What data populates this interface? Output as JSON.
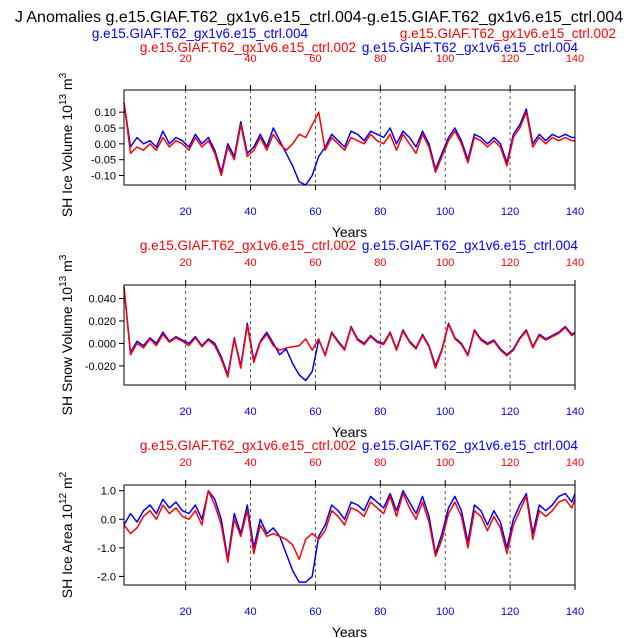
{
  "title": "J Anomalies g.e15.GIAF.T62_gx1v6.e15_ctrl.004-g.e15.GIAF.T62_gx1v6.e15_ctrl.004",
  "colors": {
    "blue": "#0000ff",
    "red": "#ff0000",
    "axis": "#000000",
    "grid": "#555555"
  },
  "chart_data": [
    {
      "type": "line",
      "ylabel": "SH Ice Volume 10",
      "ylabel_sup": "13",
      "ylabel_unit": "m",
      "ylabel_unit_sup": "3",
      "xlabel": "Years",
      "top_label_blue": "g.e15.GIAF.T62_gx1v6.e15_ctrl.004",
      "top_label_red": "g.e15.GIAF.T62_gx1v6.e15_ctrl.002",
      "xlim": [
        1,
        140
      ],
      "ylim": [
        -0.13,
        0.17
      ],
      "yticks": [
        -0.1,
        -0.05,
        0.0,
        0.05,
        0.1
      ],
      "ytick_labels": [
        "-0.10",
        "-0.05",
        "0.00",
        "0.05",
        "0.10"
      ],
      "xticks": [
        20,
        40,
        60,
        80,
        100,
        120,
        140
      ],
      "xtick_labels": [
        "20",
        "40",
        "60",
        "80",
        "100",
        "120",
        "140"
      ],
      "grid_x": [
        20,
        40,
        60,
        80,
        100,
        120
      ],
      "series": [
        {
          "name": "g.e15.GIAF.T62_gx1v6.e15_ctrl.004",
          "color": "#0000ff",
          "x": [
            1,
            3,
            5,
            7,
            9,
            11,
            13,
            15,
            17,
            19,
            21,
            23,
            25,
            27,
            29,
            31,
            33,
            35,
            37,
            39,
            41,
            43,
            45,
            47,
            49,
            51,
            53,
            55,
            57,
            59,
            61,
            63,
            65,
            67,
            69,
            71,
            73,
            75,
            77,
            79,
            81,
            83,
            85,
            87,
            89,
            91,
            93,
            95,
            97,
            99,
            101,
            103,
            105,
            107,
            109,
            111,
            113,
            115,
            117,
            119,
            121,
            123,
            125,
            127,
            129,
            131,
            133,
            135,
            137,
            139,
            140
          ],
          "values": [
            0.13,
            -0.01,
            0.02,
            0.0,
            0.01,
            -0.01,
            0.04,
            0.0,
            0.02,
            0.01,
            -0.01,
            0.03,
            0.0,
            0.02,
            -0.02,
            -0.09,
            0.0,
            -0.04,
            0.07,
            -0.03,
            -0.01,
            0.03,
            -0.01,
            0.05,
            0.01,
            -0.03,
            -0.07,
            -0.12,
            -0.13,
            -0.1,
            -0.04,
            -0.01,
            0.03,
            0.01,
            -0.01,
            0.04,
            0.03,
            0.01,
            0.04,
            0.03,
            0.02,
            0.05,
            0.0,
            0.04,
            0.02,
            -0.01,
            0.04,
            0.0,
            -0.08,
            -0.03,
            0.02,
            0.05,
            0.01,
            -0.05,
            0.03,
            0.02,
            0.0,
            0.02,
            0.0,
            -0.06,
            0.03,
            0.06,
            0.11,
            0.0,
            0.03,
            0.01,
            0.03,
            0.02,
            0.03,
            0.02,
            0.02
          ]
        },
        {
          "name": "g.e15.GIAF.T62_gx1v6.e15_ctrl.002",
          "color": "#ff0000",
          "x": [
            1,
            3,
            5,
            7,
            9,
            11,
            13,
            15,
            17,
            19,
            21,
            23,
            25,
            27,
            29,
            31,
            33,
            35,
            37,
            39,
            41,
            43,
            45,
            47,
            49,
            51,
            53,
            55,
            57,
            59,
            61,
            63,
            65,
            67,
            69,
            71,
            73,
            75,
            77,
            79,
            81,
            83,
            85,
            87,
            89,
            91,
            93,
            95,
            97,
            99,
            101,
            103,
            105,
            107,
            109,
            111,
            113,
            115,
            117,
            119,
            121,
            123,
            125,
            127,
            129,
            131,
            133,
            135,
            137,
            139,
            140
          ],
          "values": [
            0.13,
            -0.03,
            -0.01,
            -0.02,
            0.0,
            -0.02,
            0.02,
            -0.01,
            0.01,
            0.0,
            -0.02,
            0.02,
            -0.01,
            0.01,
            -0.03,
            -0.1,
            -0.01,
            -0.05,
            0.06,
            -0.04,
            -0.02,
            0.02,
            -0.02,
            0.03,
            0.0,
            -0.02,
            0.0,
            0.03,
            0.02,
            0.06,
            0.1,
            -0.02,
            0.02,
            0.0,
            -0.02,
            0.02,
            0.01,
            0.0,
            0.03,
            0.01,
            0.0,
            0.03,
            -0.02,
            0.03,
            0.0,
            -0.03,
            0.03,
            -0.01,
            -0.09,
            -0.04,
            0.01,
            0.04,
            0.0,
            -0.06,
            0.02,
            0.01,
            -0.01,
            0.01,
            -0.01,
            -0.07,
            0.02,
            0.05,
            0.1,
            -0.01,
            0.02,
            0.0,
            0.02,
            0.01,
            0.02,
            0.01,
            0.01
          ]
        }
      ]
    },
    {
      "type": "line",
      "ylabel": "SH Snow Volume 10",
      "ylabel_sup": "13",
      "ylabel_unit": "m",
      "ylabel_unit_sup": "3",
      "xlabel": "Years",
      "top_label_blue": "g.e15.GIAF.T62_gx1v6.e15_ctrl.004",
      "top_label_red": "g.e15.GIAF.T62_gx1v6.e15_ctrl.002",
      "xlim": [
        1,
        140
      ],
      "ylim": [
        -0.037,
        0.052
      ],
      "yticks": [
        -0.02,
        0.0,
        0.02,
        0.04
      ],
      "ytick_labels": [
        "-0.020",
        "0.000",
        "0.020",
        "0.040"
      ],
      "xticks": [
        20,
        40,
        60,
        80,
        100,
        120,
        140
      ],
      "xtick_labels": [
        "20",
        "40",
        "60",
        "80",
        "100",
        "120",
        "140"
      ],
      "grid_x": [
        20,
        40,
        60,
        80,
        100,
        120
      ],
      "series": [
        {
          "name": "g.e15.GIAF.T62_gx1v6.e15_ctrl.004",
          "color": "#0000ff",
          "x": [
            1,
            3,
            5,
            7,
            9,
            11,
            13,
            15,
            17,
            19,
            21,
            23,
            25,
            27,
            29,
            31,
            33,
            35,
            37,
            39,
            41,
            43,
            45,
            47,
            49,
            51,
            53,
            55,
            57,
            59,
            61,
            63,
            65,
            67,
            69,
            71,
            73,
            75,
            77,
            79,
            81,
            83,
            85,
            87,
            89,
            91,
            93,
            95,
            97,
            99,
            101,
            103,
            105,
            107,
            109,
            111,
            113,
            115,
            117,
            119,
            121,
            123,
            125,
            127,
            129,
            131,
            133,
            135,
            137,
            139,
            140
          ],
          "values": [
            0.05,
            -0.008,
            0.002,
            -0.002,
            0.005,
            0.0,
            0.01,
            0.002,
            0.006,
            0.003,
            0.0,
            0.006,
            -0.002,
            0.004,
            0.0,
            -0.012,
            -0.028,
            0.005,
            -0.02,
            0.018,
            -0.015,
            0.002,
            0.01,
            0.0,
            -0.01,
            -0.005,
            -0.018,
            -0.028,
            -0.033,
            -0.025,
            0.003,
            -0.01,
            0.01,
            0.002,
            -0.005,
            0.015,
            0.004,
            0.0,
            0.007,
            0.002,
            0.0,
            0.01,
            -0.005,
            0.012,
            0.002,
            -0.004,
            0.008,
            -0.002,
            -0.02,
            -0.005,
            0.018,
            0.005,
            0.0,
            -0.01,
            0.012,
            0.004,
            0.0,
            0.003,
            -0.005,
            -0.01,
            -0.005,
            0.005,
            0.012,
            -0.003,
            0.008,
            0.004,
            0.007,
            0.01,
            0.015,
            0.008,
            0.01
          ]
        },
        {
          "name": "g.e15.GIAF.T62_gx1v6.e15_ctrl.002",
          "color": "#ff0000",
          "x": [
            1,
            3,
            5,
            7,
            9,
            11,
            13,
            15,
            17,
            19,
            21,
            23,
            25,
            27,
            29,
            31,
            33,
            35,
            37,
            39,
            41,
            43,
            45,
            47,
            49,
            51,
            53,
            55,
            57,
            59,
            61,
            63,
            65,
            67,
            69,
            71,
            73,
            75,
            77,
            79,
            81,
            83,
            85,
            87,
            89,
            91,
            93,
            95,
            97,
            99,
            101,
            103,
            105,
            107,
            109,
            111,
            113,
            115,
            117,
            119,
            121,
            123,
            125,
            127,
            129,
            131,
            133,
            135,
            137,
            139,
            140
          ],
          "values": [
            0.05,
            -0.01,
            0.0,
            -0.004,
            0.004,
            -0.002,
            0.008,
            0.001,
            0.005,
            0.002,
            -0.002,
            0.005,
            -0.003,
            0.003,
            -0.002,
            -0.014,
            -0.03,
            0.004,
            -0.022,
            0.016,
            -0.017,
            0.001,
            0.008,
            -0.002,
            -0.006,
            -0.004,
            -0.003,
            -0.002,
            0.004,
            -0.006,
            0.004,
            -0.011,
            0.009,
            0.001,
            -0.006,
            0.014,
            0.003,
            -0.001,
            0.006,
            0.001,
            -0.001,
            0.009,
            -0.006,
            0.011,
            0.001,
            -0.005,
            0.007,
            -0.003,
            -0.022,
            -0.006,
            0.017,
            0.004,
            -0.001,
            -0.011,
            0.011,
            0.003,
            -0.001,
            0.002,
            -0.006,
            -0.011,
            -0.006,
            0.004,
            0.011,
            -0.004,
            0.007,
            0.003,
            0.006,
            0.009,
            0.014,
            0.007,
            0.009
          ]
        }
      ]
    },
    {
      "type": "line",
      "ylabel": "SH Ice Area 10",
      "ylabel_sup": "12",
      "ylabel_unit": "m",
      "ylabel_unit_sup": "2",
      "xlabel": "Years",
      "top_label_blue": "g.e15.GIAF.T62_gx1v6.e15_ctrl.004",
      "top_label_red": "g.e15.GIAF.T62_gx1v6.e15_ctrl.002",
      "xlim": [
        1,
        140
      ],
      "ylim": [
        -2.3,
        1.2
      ],
      "yticks": [
        -2.0,
        -1.0,
        0.0,
        1.0
      ],
      "ytick_labels": [
        "-2.0",
        "-1.0",
        "0.0",
        "1.0"
      ],
      "xticks": [
        20,
        40,
        60,
        80,
        100,
        120,
        140
      ],
      "xtick_labels": [
        "20",
        "40",
        "60",
        "80",
        "100",
        "120",
        "140"
      ],
      "grid_x": [
        20,
        40,
        60,
        80,
        100,
        120
      ],
      "series": [
        {
          "name": "g.e15.GIAF.T62_gx1v6.e15_ctrl.004",
          "color": "#0000ff",
          "x": [
            1,
            3,
            5,
            7,
            9,
            11,
            13,
            15,
            17,
            19,
            21,
            23,
            25,
            27,
            29,
            31,
            33,
            35,
            37,
            39,
            41,
            43,
            45,
            47,
            49,
            51,
            53,
            55,
            57,
            59,
            61,
            63,
            65,
            67,
            69,
            71,
            73,
            75,
            77,
            79,
            81,
            83,
            85,
            87,
            89,
            91,
            93,
            95,
            97,
            99,
            101,
            103,
            105,
            107,
            109,
            111,
            113,
            115,
            117,
            119,
            121,
            123,
            125,
            127,
            129,
            131,
            133,
            135,
            137,
            139,
            140
          ],
          "values": [
            -0.2,
            0.2,
            -0.1,
            0.3,
            0.5,
            0.2,
            0.7,
            0.4,
            0.6,
            0.3,
            0.2,
            0.5,
            0.0,
            1.0,
            0.7,
            0.0,
            -1.4,
            0.2,
            -0.5,
            0.5,
            -1.0,
            0.0,
            -0.5,
            -0.3,
            -0.6,
            -1.2,
            -1.8,
            -2.2,
            -2.2,
            -2.0,
            -0.6,
            -0.2,
            0.5,
            0.3,
            0.0,
            0.6,
            0.5,
            0.3,
            0.8,
            0.6,
            0.4,
            0.9,
            0.3,
            1.0,
            0.6,
            0.2,
            0.8,
            0.1,
            -1.2,
            -0.5,
            0.4,
            0.8,
            0.3,
            -0.8,
            0.5,
            0.3,
            -0.2,
            0.3,
            -0.1,
            -1.0,
            0.0,
            0.5,
            0.9,
            -0.5,
            0.5,
            0.3,
            0.5,
            0.8,
            0.9,
            0.6,
            0.9
          ]
        },
        {
          "name": "g.e15.GIAF.T62_gx1v6.e15_ctrl.002",
          "color": "#ff0000",
          "x": [
            1,
            3,
            5,
            7,
            9,
            11,
            13,
            15,
            17,
            19,
            21,
            23,
            25,
            27,
            29,
            31,
            33,
            35,
            37,
            39,
            41,
            43,
            45,
            47,
            49,
            51,
            53,
            55,
            57,
            59,
            61,
            63,
            65,
            67,
            69,
            71,
            73,
            75,
            77,
            79,
            81,
            83,
            85,
            87,
            89,
            91,
            93,
            95,
            97,
            99,
            101,
            103,
            105,
            107,
            109,
            111,
            113,
            115,
            117,
            119,
            121,
            123,
            125,
            127,
            129,
            131,
            133,
            135,
            137,
            139,
            140
          ],
          "values": [
            -0.2,
            -0.5,
            -0.3,
            0.1,
            0.3,
            0.0,
            0.5,
            0.2,
            0.4,
            0.1,
            0.0,
            0.3,
            -0.2,
            1.0,
            0.5,
            -0.2,
            -1.5,
            0.0,
            -0.6,
            0.3,
            -1.2,
            -0.2,
            -0.6,
            -0.5,
            -0.6,
            -0.7,
            -0.9,
            -1.4,
            -0.7,
            -0.5,
            -0.7,
            -0.4,
            0.3,
            0.1,
            -0.2,
            0.4,
            0.3,
            0.1,
            0.6,
            0.4,
            0.2,
            0.8,
            0.1,
            0.9,
            0.4,
            0.0,
            0.6,
            -0.1,
            -1.3,
            -0.7,
            0.2,
            0.6,
            0.1,
            -1.0,
            0.3,
            0.1,
            -0.4,
            0.1,
            -0.3,
            -1.2,
            -0.2,
            0.3,
            0.8,
            -0.7,
            0.3,
            0.1,
            0.3,
            0.6,
            0.7,
            0.4,
            0.7
          ]
        }
      ]
    }
  ]
}
